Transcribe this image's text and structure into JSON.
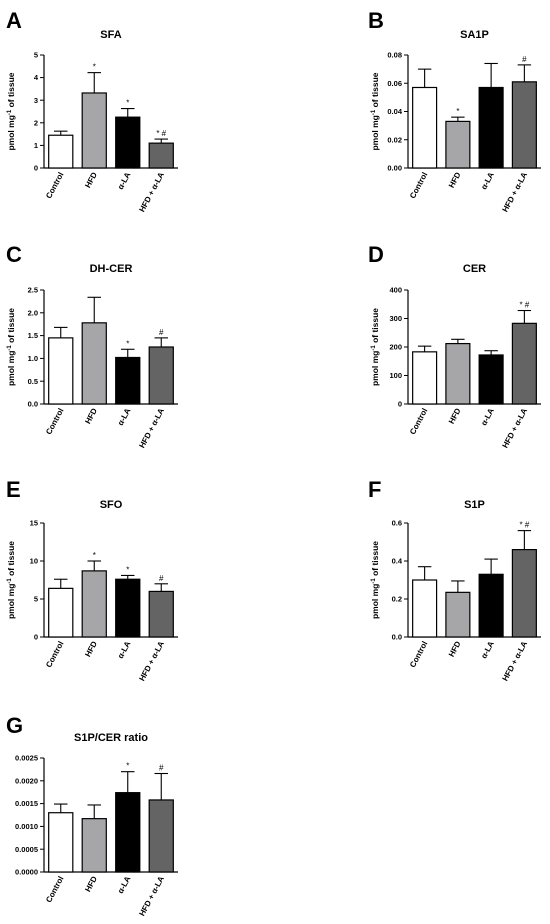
{
  "categories": [
    "Control",
    "HFD",
    "α-LA",
    "HFD + α-LA"
  ],
  "bar_colors": [
    "#ffffff",
    "#a6a6a8",
    "#000000",
    "#646464"
  ],
  "ylabel_main": "pmol mg",
  "ylabel_sup": "-1",
  "ylabel_tail": " of tissue",
  "chart_data": [
    {
      "letter": "A",
      "type": "bar",
      "title": "SFA",
      "xlabel": "",
      "ylabel": "pmol mg-1 of tissue",
      "categories": [
        "Control",
        "HFD",
        "α-LA",
        "HFD + α-LA"
      ],
      "values": [
        1.45,
        3.32,
        2.25,
        1.1
      ],
      "errors": [
        0.18,
        0.9,
        0.38,
        0.18
      ],
      "annotations": [
        "",
        "*",
        "*",
        "* #"
      ],
      "ylim": [
        0,
        5
      ],
      "yticks": [
        "0",
        "1",
        "2",
        "3",
        "4",
        "5"
      ],
      "ytick_values": [
        0,
        1,
        2,
        3,
        4,
        5
      ]
    },
    {
      "letter": "B",
      "type": "bar",
      "title": "SA1P",
      "xlabel": "",
      "ylabel": "pmol mg-1 of tissue",
      "categories": [
        "Control",
        "HFD",
        "α-LA",
        "HFD + α-LA"
      ],
      "values": [
        0.057,
        0.033,
        0.057,
        0.061
      ],
      "errors": [
        0.013,
        0.003,
        0.017,
        0.012
      ],
      "annotations": [
        "",
        "*",
        "",
        "#"
      ],
      "ylim": [
        0,
        0.08
      ],
      "yticks": [
        "0.00",
        "0.02",
        "0.04",
        "0.06",
        "0.08"
      ],
      "ytick_values": [
        0,
        0.02,
        0.04,
        0.06,
        0.08
      ]
    },
    {
      "letter": "C",
      "type": "bar",
      "title": "DH-CER",
      "xlabel": "",
      "ylabel": "pmol mg-1 of tissue",
      "categories": [
        "Control",
        "HFD",
        "α-LA",
        "HFD + α-LA"
      ],
      "values": [
        1.45,
        1.78,
        1.02,
        1.25
      ],
      "errors": [
        0.23,
        0.56,
        0.18,
        0.2
      ],
      "annotations": [
        "",
        "",
        "*",
        "#"
      ],
      "ylim": [
        0,
        2.5
      ],
      "yticks": [
        "0.0",
        "0.5",
        "1.0",
        "1.5",
        "2.0",
        "2.5"
      ],
      "ytick_values": [
        0,
        0.5,
        1.0,
        1.5,
        2.0,
        2.5
      ]
    },
    {
      "letter": "D",
      "type": "bar",
      "title": "CER",
      "xlabel": "",
      "ylabel": "pmol mg-1 of tissue",
      "categories": [
        "Control",
        "HFD",
        "α-LA",
        "HFD + α-LA"
      ],
      "values": [
        183,
        212,
        172,
        283
      ],
      "errors": [
        20,
        15,
        15,
        45
      ],
      "annotations": [
        "",
        "",
        "",
        "* #"
      ],
      "ylim": [
        0,
        400
      ],
      "yticks": [
        "0",
        "100",
        "200",
        "300",
        "400"
      ],
      "ytick_values": [
        0,
        100,
        200,
        300,
        400
      ]
    },
    {
      "letter": "E",
      "type": "bar",
      "title": "SFO",
      "xlabel": "",
      "ylabel": "pmol mg-1 of tissue",
      "categories": [
        "Control",
        "HFD",
        "α-LA",
        "HFD + α-LA"
      ],
      "values": [
        6.4,
        8.7,
        7.6,
        6.0
      ],
      "errors": [
        1.2,
        1.3,
        0.5,
        1.0
      ],
      "annotations": [
        "",
        "*",
        "*",
        "#"
      ],
      "ylim": [
        0,
        15
      ],
      "yticks": [
        "0",
        "5",
        "10",
        "15"
      ],
      "ytick_values": [
        0,
        5,
        10,
        15
      ]
    },
    {
      "letter": "F",
      "type": "bar",
      "title": "S1P",
      "xlabel": "",
      "ylabel": "pmol mg-1 of tissue",
      "categories": [
        "Control",
        "HFD",
        "α-LA",
        "HFD + α-LA"
      ],
      "values": [
        0.3,
        0.235,
        0.33,
        0.46
      ],
      "errors": [
        0.07,
        0.06,
        0.08,
        0.1
      ],
      "annotations": [
        "",
        "",
        "",
        "* #"
      ],
      "ylim": [
        0,
        0.6
      ],
      "yticks": [
        "0.0",
        "0.2",
        "0.4",
        "0.6"
      ],
      "ytick_values": [
        0,
        0.2,
        0.4,
        0.6
      ]
    },
    {
      "letter": "G",
      "type": "bar",
      "title": "S1P/CER ratio",
      "xlabel": "",
      "ylabel": "",
      "categories": [
        "Control",
        "HFD",
        "α-LA",
        "HFD + α-LA"
      ],
      "values": [
        0.0013,
        0.00117,
        0.00174,
        0.00158
      ],
      "errors": [
        0.00019,
        0.0003,
        0.00046,
        0.00058
      ],
      "annotations": [
        "",
        "",
        "*",
        "#"
      ],
      "ylim": [
        0,
        0.0025
      ],
      "yticks": [
        "0.0000",
        "0.0005",
        "0.0010",
        "0.0015",
        "0.0020",
        "0.0025"
      ],
      "ytick_values": [
        0,
        0.0005,
        0.001,
        0.0015,
        0.002,
        0.0025
      ]
    }
  ]
}
